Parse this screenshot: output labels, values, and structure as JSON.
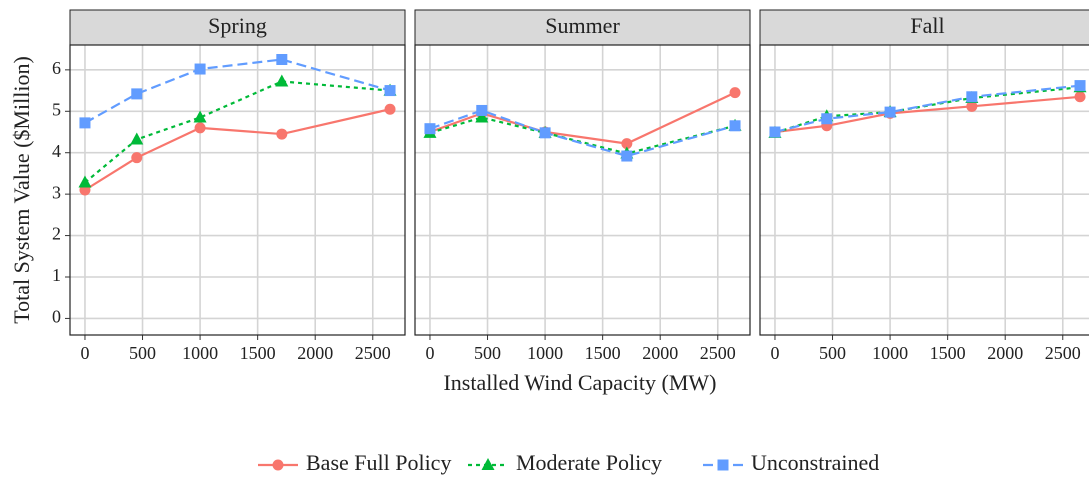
{
  "chart_data": {
    "type": "line",
    "x_label": "Installed Wind Capacity (MW)",
    "y_label": "Total System Value ($Million)",
    "x": [
      0,
      450,
      1000,
      1710,
      2650
    ],
    "xlim": [
      -130,
      2780
    ],
    "xticks": [
      0,
      500,
      1000,
      1500,
      2000,
      2500
    ],
    "ylim": [
      -0.4,
      6.6
    ],
    "yticks": [
      0,
      1,
      2,
      3,
      4,
      5,
      6
    ],
    "grid": true,
    "legend": "bottom",
    "series": [
      {
        "name": "Base Full Policy",
        "color": "#F8766D",
        "dash": "solid",
        "marker": "circle"
      },
      {
        "name": "Moderate Policy",
        "color": "#00BA38",
        "dash": "dotted",
        "marker": "triangle"
      },
      {
        "name": "Unconstrained",
        "color": "#619CFF",
        "dash": "dashed",
        "marker": "square"
      }
    ],
    "panels": [
      {
        "title": "Spring",
        "values": [
          [
            3.1,
            3.88,
            4.6,
            4.45,
            5.05
          ],
          [
            3.28,
            4.32,
            4.85,
            5.72,
            5.5
          ],
          [
            4.72,
            5.42,
            6.02,
            6.25,
            5.5
          ]
        ]
      },
      {
        "title": "Summer",
        "values": [
          [
            4.5,
            4.95,
            4.5,
            4.22,
            5.45
          ],
          [
            4.48,
            4.85,
            4.48,
            3.98,
            4.65
          ],
          [
            4.58,
            5.02,
            4.48,
            3.92,
            4.65
          ]
        ]
      },
      {
        "title": "Fall",
        "values": [
          [
            4.5,
            4.65,
            4.95,
            5.12,
            5.35
          ],
          [
            4.48,
            4.88,
            4.98,
            5.32,
            5.58
          ],
          [
            4.5,
            4.82,
            4.98,
            5.35,
            5.62
          ]
        ]
      }
    ]
  }
}
